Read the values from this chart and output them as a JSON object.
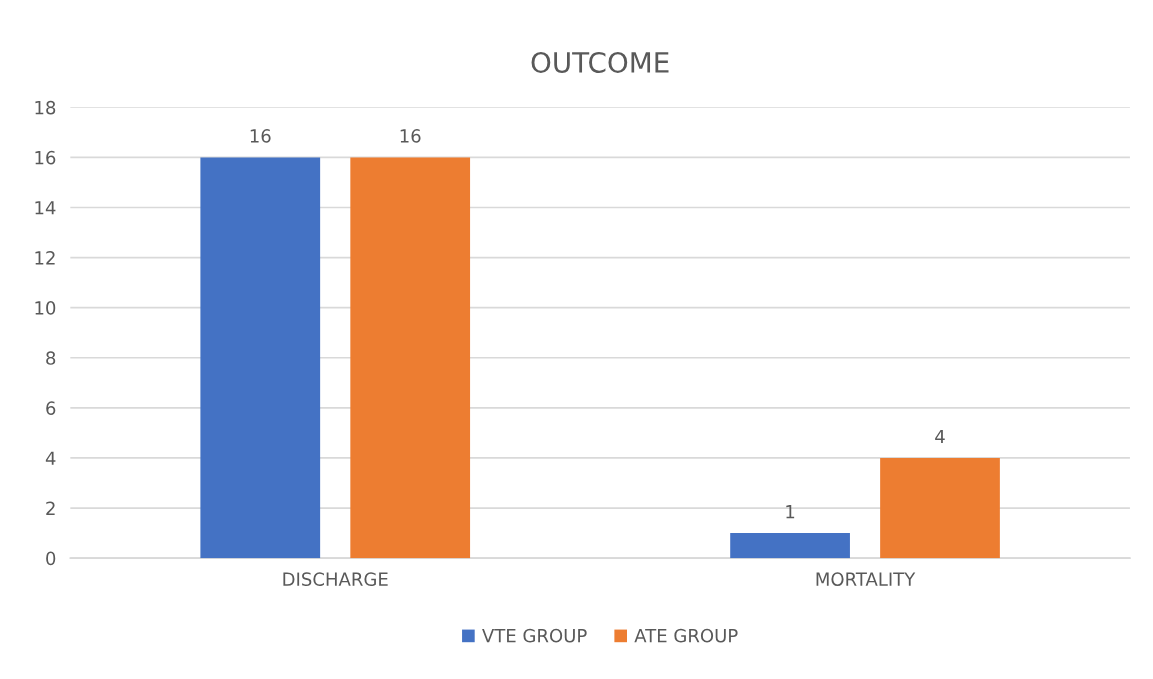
{
  "chart_data": {
    "type": "bar",
    "title": "OUTCOME",
    "categories": [
      "DISCHARGE",
      "MORTALITY"
    ],
    "series": [
      {
        "name": "VTE GROUP",
        "color": "#4472c4",
        "values": [
          16,
          1
        ]
      },
      {
        "name": "ATE GROUP",
        "color": "#ed7d31",
        "values": [
          16,
          4
        ]
      }
    ],
    "ylim": [
      0,
      18
    ],
    "yticks": [
      0,
      2,
      4,
      6,
      8,
      10,
      12,
      14,
      16,
      18
    ],
    "grid": "y",
    "legend": "bottom",
    "data_labels": true
  }
}
